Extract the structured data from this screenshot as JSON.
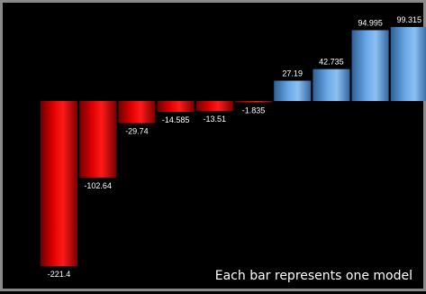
{
  "chart_data": {
    "type": "bar",
    "categories": [
      "",
      "",
      "",
      "",
      "",
      "",
      "",
      "",
      "",
      ""
    ],
    "values": [
      -221.4,
      -102.64,
      -29.74,
      -14.585,
      -13.51,
      -1.835,
      27.19,
      42.735,
      94.995,
      99.315
    ],
    "labels": [
      "-221.4",
      "-102.64",
      "-29.74",
      "-14.585",
      "-13.51",
      "-1.835",
      "27.19",
      "42.735",
      "94.995",
      "99.315"
    ],
    "annotation": "Each bar represents one model",
    "grid": false,
    "legend": "none",
    "colors": {
      "negative": "#cc0000",
      "positive": "#5b9bd5",
      "background": "#000000",
      "border": "#8a8a8a",
      "text": "#ffffff"
    }
  }
}
